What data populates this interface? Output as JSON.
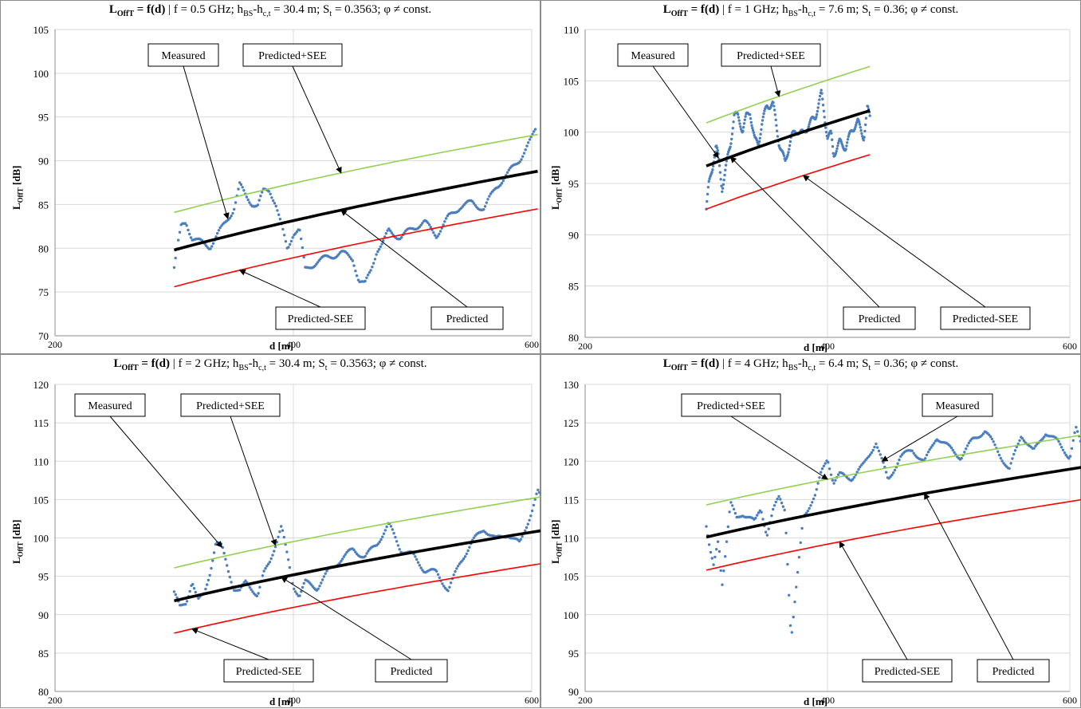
{
  "chart_data": [
    {
      "type": "scatter",
      "title_main": "L",
      "title_sub": "OffT",
      "title_func": " = f(d)",
      "title_rest": " | f = 0.5 GHz; h",
      "title_hbs": "BS",
      "title_dash": "-h",
      "title_hct": "c,t",
      "title_eq": " = 30.4 m; S",
      "title_st": "t",
      "title_tail": " = 0.3563; φ ≠ const.",
      "ylabel_main": "L",
      "ylabel_sub": "OffT",
      "ylabel_unit": " [dB]",
      "xlabel": "d [m]",
      "xlim": [
        200,
        600
      ],
      "ylim": [
        70,
        105
      ],
      "yticks": [
        70,
        75,
        80,
        85,
        90,
        95,
        100,
        105
      ],
      "xticks": [
        200,
        400,
        600
      ],
      "grid": true,
      "d_range": [
        300,
        605
      ],
      "predicted": [
        79.8,
        88.8
      ],
      "predicted_plus": [
        84.1,
        93.0
      ],
      "predicted_minus": [
        75.6,
        84.5
      ],
      "measured": {
        "x": [
          300,
          303,
          306,
          310,
          315,
          320,
          330,
          340,
          350,
          355,
          360,
          365,
          370,
          375,
          380,
          385,
          390,
          395,
          400,
          405,
          410,
          420,
          430,
          440,
          450,
          455,
          460,
          465,
          470,
          475,
          480,
          490,
          500,
          510,
          520,
          530,
          540,
          550,
          560,
          570,
          580,
          590,
          600,
          603
        ],
        "y": [
          77.8,
          80.2,
          82.5,
          83,
          81.2,
          80.8,
          80.2,
          82.3,
          84.5,
          87.2,
          86,
          85.2,
          84.8,
          86.5,
          86.7,
          85.2,
          82.5,
          79.8,
          81.8,
          82.2,
          77.5,
          78.5,
          79,
          79.5,
          78.8,
          76.3,
          75.8,
          77.5,
          79.8,
          80.5,
          82,
          81.2,
          82.3,
          83,
          81.5,
          83.5,
          84.8,
          85.2,
          84.5,
          87,
          88.5,
          90.2,
          92.5,
          93.5
        ]
      },
      "callouts": {
        "measured": "Measured",
        "plus": "Predicted+SEE",
        "minus": "Predicted-SEE",
        "predicted": "Predicted"
      },
      "colors": {
        "measured": "#4a7ebf",
        "predicted": "#000000",
        "plus": "#92d050",
        "minus": "#ff0000"
      }
    },
    {
      "type": "scatter",
      "title_main": "L",
      "title_sub": "OffT",
      "title_func": " = f(d)",
      "title_rest": " | f = 1 GHz; h",
      "title_hbs": "BS",
      "title_dash": "-h",
      "title_hct": "c,t",
      "title_eq": " = 7.6 m; S",
      "title_st": "t",
      "title_tail": " = 0.36; φ ≠ const.",
      "ylabel_main": "L",
      "ylabel_sub": "OffT",
      "ylabel_unit": " [dB]",
      "xlabel": "d [m]",
      "xlim": [
        200,
        600
      ],
      "ylim": [
        80,
        110
      ],
      "yticks": [
        80,
        85,
        90,
        95,
        100,
        105,
        110
      ],
      "xticks": [
        200,
        400,
        600
      ],
      "grid": true,
      "d_range": [
        300,
        435
      ],
      "predicted": [
        96.7,
        102.1
      ],
      "predicted_plus": [
        100.9,
        106.4
      ],
      "predicted_minus": [
        92.5,
        97.8
      ],
      "measured": {
        "x": [
          300,
          302,
          305,
          308,
          310,
          313,
          316,
          320,
          323,
          326,
          330,
          333,
          336,
          340,
          343,
          346,
          350,
          355,
          358,
          360,
          365,
          370,
          375,
          380,
          385,
          390,
          395,
          400,
          403,
          405,
          410,
          415,
          420,
          425,
          430,
          433,
          435
        ],
        "y": [
          92.5,
          94.8,
          96.5,
          98.7,
          97.5,
          94.5,
          96.5,
          98.8,
          101.8,
          101.5,
          100.2,
          101.5,
          102,
          99.2,
          98.8,
          101,
          102.5,
          102.8,
          100.5,
          99,
          97,
          99.5,
          100.2,
          99.8,
          100.8,
          101.5,
          103.8,
          99.5,
          99.8,
          97.8,
          99,
          98.5,
          100.2,
          101,
          99.5,
          102.3,
          101.5
        ]
      },
      "callouts": {
        "measured": "Measured",
        "plus": "Predicted+SEE",
        "minus": "Predicted-SEE",
        "predicted": "Predicted"
      },
      "colors": {
        "measured": "#4a7ebf",
        "predicted": "#000000",
        "plus": "#92d050",
        "minus": "#ff0000"
      }
    },
    {
      "type": "scatter",
      "title_main": "L",
      "title_sub": "OffT",
      "title_func": " = f(d)",
      "title_rest": " | f = 2 GHz; h",
      "title_hbs": "BS",
      "title_dash": "-h",
      "title_hct": "c,t",
      "title_eq": " = 30.4 m; S",
      "title_st": "t",
      "title_tail": " = 0.3563; φ ≠ const.",
      "ylabel_main": "L",
      "ylabel_sub": "OffT",
      "ylabel_unit": " [dB]",
      "xlabel": "d [m]",
      "xlim": [
        200,
        600
      ],
      "ylim": [
        80,
        120
      ],
      "yticks": [
        80,
        85,
        90,
        95,
        100,
        105,
        110,
        115,
        120
      ],
      "xticks": [
        200,
        400,
        600
      ],
      "grid": true,
      "d_range": [
        300,
        610
      ],
      "predicted": [
        91.8,
        101.0
      ],
      "predicted_plus": [
        96.1,
        105.4
      ],
      "predicted_minus": [
        87.6,
        96.7
      ],
      "measured": {
        "x": [
          300,
          305,
          310,
          315,
          320,
          325,
          330,
          335,
          340,
          345,
          350,
          355,
          360,
          365,
          370,
          375,
          380,
          385,
          390,
          395,
          400,
          405,
          410,
          420,
          430,
          440,
          450,
          460,
          470,
          480,
          490,
          500,
          510,
          520,
          530,
          540,
          550,
          560,
          570,
          580,
          590,
          600,
          605,
          610
        ],
        "y": [
          93,
          90.8,
          91.5,
          94.5,
          91.8,
          92.5,
          95.5,
          99.5,
          98.8,
          96,
          93.5,
          93,
          94.2,
          93.5,
          92.5,
          95.2,
          96.8,
          99.2,
          101.5,
          97.5,
          93.8,
          92.5,
          94.2,
          93.5,
          95.8,
          97.2,
          98.5,
          97.5,
          99.2,
          101.8,
          98.5,
          97.8,
          95.8,
          95.5,
          93.2,
          96.8,
          99.5,
          101.2,
          99.8,
          100.5,
          99.2,
          103.5,
          106,
          104.5
        ]
      },
      "callouts": {
        "measured": "Measured",
        "plus": "Predicted+SEE",
        "minus": "Predicted-SEE",
        "predicted": "Predicted"
      },
      "colors": {
        "measured": "#4a7ebf",
        "predicted": "#000000",
        "plus": "#92d050",
        "minus": "#ff0000"
      }
    },
    {
      "type": "scatter",
      "title_main": "L",
      "title_sub": "OffT",
      "title_func": " = f(d)",
      "title_rest": " | f = 4 GHz; h",
      "title_hbs": "BS",
      "title_dash": "-h",
      "title_hct": "c,t",
      "title_eq": " = 6.4 m; S",
      "title_st": "t",
      "title_tail": " = 0.36; φ ≠ const.",
      "ylabel_main": "L",
      "ylabel_sub": "OffT",
      "ylabel_unit": " [dB]",
      "xlabel": "d [m]",
      "xlim": [
        200,
        600
      ],
      "ylim": [
        90,
        130
      ],
      "yticks": [
        90,
        95,
        100,
        105,
        110,
        115,
        120,
        125,
        130
      ],
      "xticks": [
        200,
        400,
        600
      ],
      "grid": true,
      "d_range": [
        300,
        610
      ],
      "predicted": [
        110.1,
        119.2
      ],
      "predicted_plus": [
        114.3,
        123.4
      ],
      "predicted_minus": [
        105.8,
        115.0
      ],
      "measured": {
        "x": [
          300,
          303,
          306,
          310,
          313,
          316,
          320,
          325,
          330,
          335,
          340,
          345,
          350,
          355,
          360,
          365,
          370,
          375,
          380,
          385,
          390,
          395,
          400,
          405,
          410,
          420,
          430,
          440,
          450,
          460,
          470,
          480,
          490,
          500,
          510,
          520,
          530,
          540,
          550,
          560,
          570,
          580,
          590,
          600,
          605,
          610
        ],
        "y": [
          111.5,
          108.2,
          106.2,
          110,
          104,
          108.5,
          114.5,
          112.5,
          113.2,
          112.8,
          112,
          113.8,
          110.5,
          113.5,
          115.2,
          113.8,
          96.8,
          104.5,
          112.8,
          114.2,
          115.5,
          118.5,
          120.5,
          117.2,
          118.2,
          117.8,
          119.5,
          122.5,
          117.5,
          120.5,
          121.5,
          119.8,
          123.2,
          121.8,
          120.5,
          122.8,
          124,
          121.5,
          118.8,
          123.5,
          121.2,
          123.8,
          122.5,
          120.5,
          124.2,
          121.8
        ]
      },
      "callouts": {
        "measured": "Measured",
        "plus": "Predicted+SEE",
        "minus": "Predicted-SEE",
        "predicted": "Predicted"
      },
      "colors": {
        "measured": "#4a7ebf",
        "predicted": "#000000",
        "plus": "#92d050",
        "minus": "#ff0000"
      }
    }
  ]
}
